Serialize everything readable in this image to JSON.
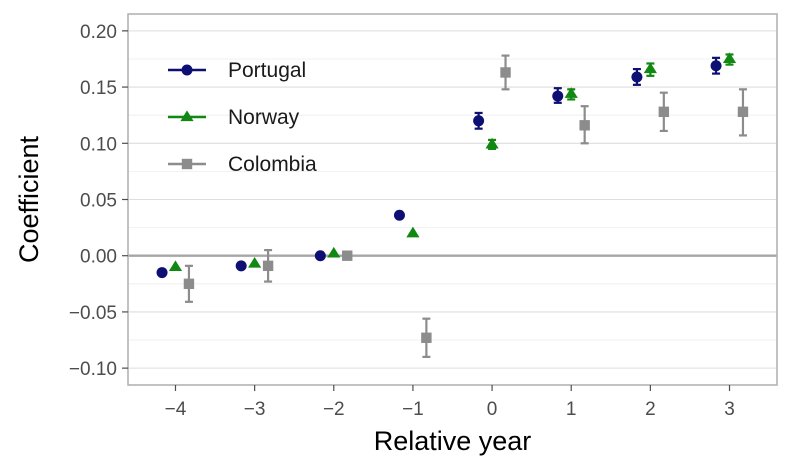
{
  "chart_data": {
    "type": "scatter",
    "title": "",
    "xlabel": "Relative year",
    "ylabel": "Coefficient",
    "xlim": [
      -4.6,
      3.6
    ],
    "ylim": [
      -0.115,
      0.215
    ],
    "x_ticks": [
      -4,
      -3,
      -2,
      -1,
      0,
      1,
      2,
      3
    ],
    "x_tick_labels": [
      "−4",
      "−3",
      "−2",
      "−1",
      "0",
      "1",
      "2",
      "3"
    ],
    "y_ticks": [
      -0.1,
      -0.05,
      0.0,
      0.05,
      0.1,
      0.15,
      0.2
    ],
    "y_tick_labels": [
      "−0.10",
      "−0.05",
      "0.00",
      "0.05",
      "0.10",
      "0.15",
      "0.20"
    ],
    "reference_line": 0,
    "grid": true,
    "legend_position": "top-left",
    "series": [
      {
        "name": "Portugal",
        "color": "#0d0f73",
        "marker": "circle",
        "offset": -0.17,
        "x": [
          -4,
          -3,
          -2,
          -1,
          0,
          1,
          2,
          3
        ],
        "y": [
          -0.015,
          -0.009,
          0.0,
          0.036,
          0.12,
          0.142,
          0.159,
          0.169
        ],
        "err_low": [
          null,
          null,
          null,
          null,
          0.113,
          0.136,
          0.152,
          0.162
        ],
        "err_high": [
          null,
          null,
          null,
          null,
          0.127,
          0.149,
          0.166,
          0.176
        ]
      },
      {
        "name": "Norway",
        "color": "#118811",
        "marker": "triangle",
        "offset": 0.0,
        "x": [
          -4,
          -3,
          -2,
          -1,
          0,
          1,
          2,
          3
        ],
        "y": [
          -0.01,
          -0.007,
          0.002,
          0.02,
          0.099,
          0.144,
          0.166,
          0.175
        ],
        "err_low": [
          null,
          null,
          null,
          null,
          0.095,
          0.139,
          0.16,
          0.17
        ],
        "err_high": [
          null,
          null,
          null,
          null,
          0.103,
          0.148,
          0.171,
          0.179
        ]
      },
      {
        "name": "Colombia",
        "color": "#8c8c8c",
        "marker": "square",
        "offset": 0.17,
        "x": [
          -4,
          -3,
          -2,
          -1,
          0,
          1,
          2,
          3
        ],
        "y": [
          -0.025,
          -0.009,
          0.0,
          -0.073,
          0.163,
          0.116,
          0.128,
          0.128
        ],
        "err_low": [
          -0.041,
          -0.023,
          null,
          -0.09,
          0.148,
          0.1,
          0.111,
          0.107
        ],
        "err_high": [
          -0.009,
          0.005,
          null,
          -0.056,
          0.178,
          0.133,
          0.145,
          0.148
        ]
      }
    ]
  }
}
